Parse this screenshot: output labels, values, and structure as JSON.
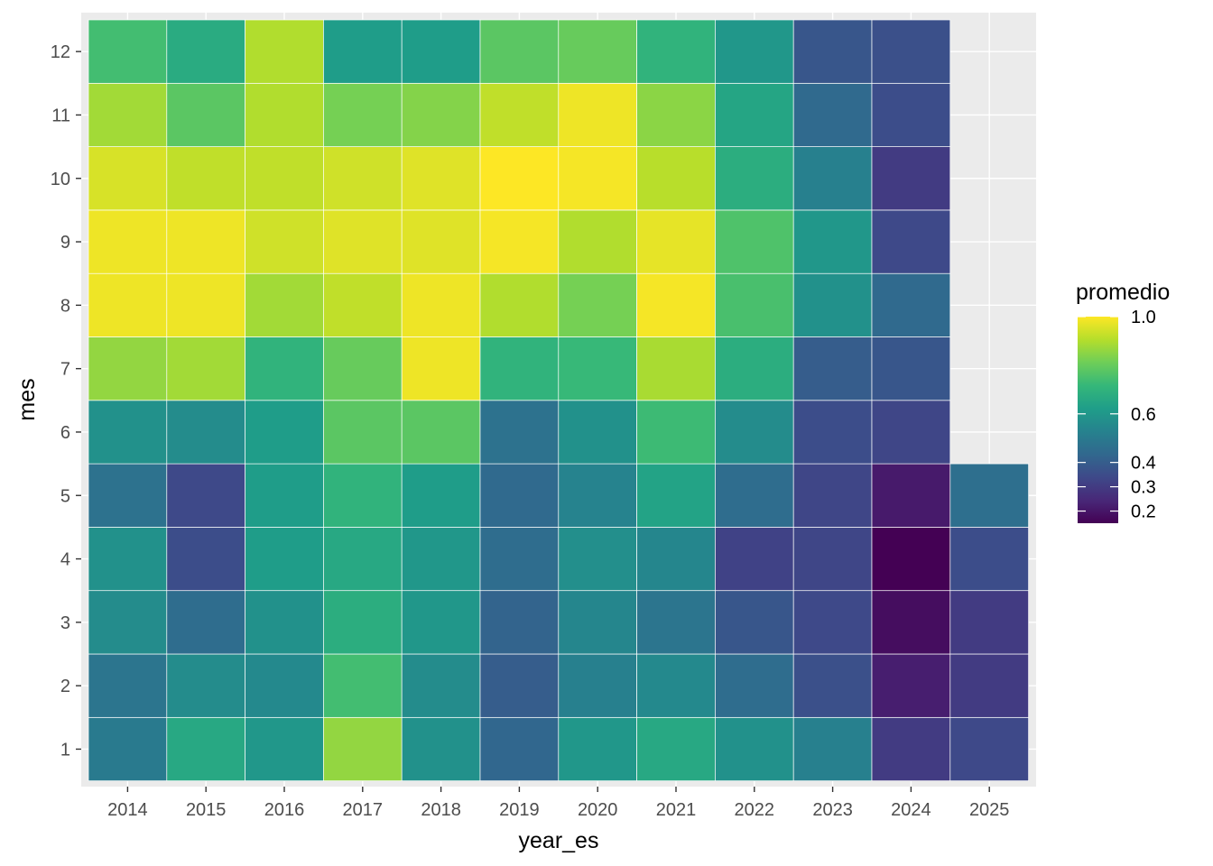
{
  "chart_data": {
    "type": "heatmap",
    "xlabel": "year_es",
    "ylabel": "mes",
    "x": [
      "2014",
      "2015",
      "2016",
      "2017",
      "2018",
      "2019",
      "2020",
      "2021",
      "2022",
      "2023",
      "2024",
      "2025"
    ],
    "y": [
      "1",
      "2",
      "3",
      "4",
      "5",
      "6",
      "7",
      "8",
      "9",
      "10",
      "11",
      "12"
    ],
    "colorscale": "viridis",
    "color_range": [
      0.15,
      1.0
    ],
    "grid": true,
    "legend": {
      "title": "promedio",
      "placement": "right",
      "breaks": [
        1.0,
        0.6,
        0.4,
        0.3,
        0.2
      ],
      "labels": [
        "1.0",
        "0.6",
        "0.4",
        "0.3",
        "0.2"
      ]
    },
    "values": [
      [
        0.5,
        0.66,
        0.6,
        0.86,
        0.58,
        0.43,
        0.6,
        0.66,
        0.58,
        0.52,
        0.3,
        0.34
      ],
      [
        0.48,
        0.56,
        0.55,
        0.74,
        0.56,
        0.4,
        0.52,
        0.55,
        0.45,
        0.36,
        0.22,
        0.3
      ],
      [
        0.56,
        0.45,
        0.58,
        0.68,
        0.6,
        0.42,
        0.54,
        0.48,
        0.38,
        0.34,
        0.18,
        0.3
      ],
      [
        0.58,
        0.35,
        0.62,
        0.66,
        0.6,
        0.45,
        0.57,
        0.54,
        0.32,
        0.33,
        0.15,
        0.35
      ],
      [
        0.47,
        0.34,
        0.62,
        0.7,
        0.62,
        0.44,
        0.53,
        0.64,
        0.45,
        0.33,
        0.21,
        0.46
      ],
      [
        0.58,
        0.56,
        0.62,
        0.78,
        0.78,
        0.47,
        0.58,
        0.73,
        0.56,
        0.35,
        0.33,
        null
      ],
      [
        0.86,
        0.88,
        0.7,
        0.8,
        0.98,
        0.7,
        0.72,
        0.89,
        0.68,
        0.4,
        0.38,
        null
      ],
      [
        0.98,
        0.98,
        0.88,
        0.92,
        0.98,
        0.9,
        0.82,
        0.99,
        0.75,
        0.58,
        0.44,
        null
      ],
      [
        0.98,
        0.98,
        0.94,
        0.96,
        0.96,
        0.99,
        0.9,
        0.97,
        0.76,
        0.6,
        0.34,
        null
      ],
      [
        0.95,
        0.92,
        0.92,
        0.94,
        0.96,
        1.0,
        0.99,
        0.91,
        0.68,
        0.52,
        0.3,
        null
      ],
      [
        0.88,
        0.78,
        0.9,
        0.82,
        0.84,
        0.92,
        0.98,
        0.85,
        0.65,
        0.44,
        0.35,
        null
      ],
      [
        0.74,
        0.67,
        0.9,
        0.62,
        0.62,
        0.78,
        0.8,
        0.7,
        0.6,
        0.38,
        0.36,
        null
      ]
    ]
  }
}
